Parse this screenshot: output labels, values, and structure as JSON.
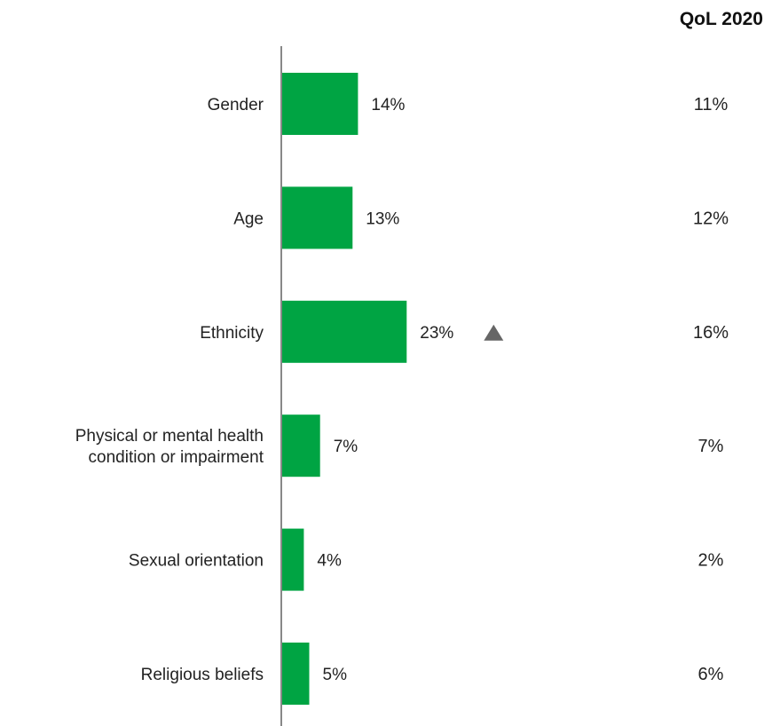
{
  "chart_data": {
    "type": "bar",
    "orientation": "horizontal",
    "categories": [
      [
        "Gender"
      ],
      [
        "Age"
      ],
      [
        "Ethnicity"
      ],
      [
        "Physical or mental health",
        "condition or impairment"
      ],
      [
        "Sexual orientation"
      ],
      [
        "Religious beliefs"
      ]
    ],
    "values": [
      14,
      13,
      23,
      7,
      4,
      5
    ],
    "value_labels": [
      "14%",
      "13%",
      "23%",
      "7%",
      "4%",
      "5%"
    ],
    "significance": [
      null,
      null,
      "up",
      null,
      null,
      null
    ],
    "comparison": {
      "header": "QoL 2020",
      "values": [
        "11%",
        "12%",
        "16%",
        "7%",
        "2%",
        "6%"
      ]
    },
    "xlim": [
      0,
      100
    ],
    "grid": false,
    "legend": "none",
    "colors": {
      "bar": "#00a443",
      "axis": "#888888",
      "significance_marker": "#666666"
    }
  }
}
